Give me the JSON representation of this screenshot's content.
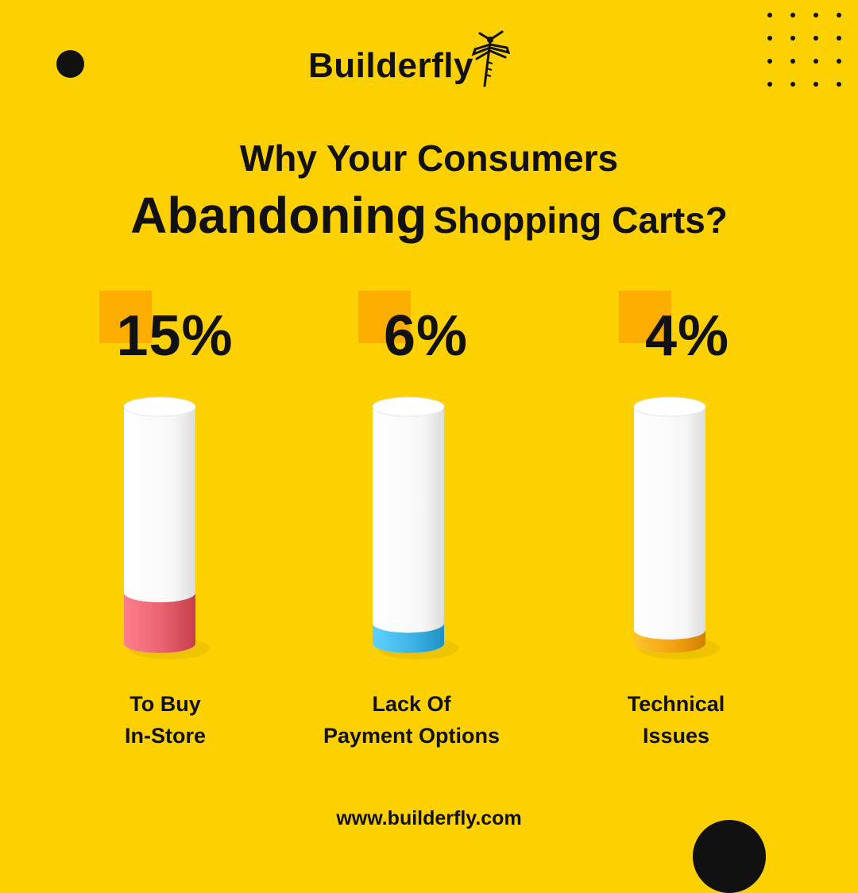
{
  "brand": {
    "name": "Builderfly",
    "website": "www.builderfly.com"
  },
  "headline": {
    "line1": "Why Your Consumers",
    "line2_strong": "Abandoning",
    "line2_rest": "Shopping Carts?"
  },
  "chart_data": {
    "type": "bar",
    "categories": [
      [
        "To Buy",
        "In-Store"
      ],
      [
        "Lack Of",
        "Payment Options"
      ],
      [
        "Technical",
        "Issues"
      ]
    ],
    "values": [
      15,
      6,
      4
    ],
    "value_labels": [
      "15%",
      "6%",
      "4%"
    ],
    "colors": [
      "#e8616f",
      "#3fb4e6",
      "#f4a30f"
    ],
    "ylim": [
      0,
      70
    ],
    "grid": false,
    "legend": "none"
  },
  "colors": {
    "background": "#fdd000",
    "accent": "#fbae00",
    "ink": "#111111"
  }
}
